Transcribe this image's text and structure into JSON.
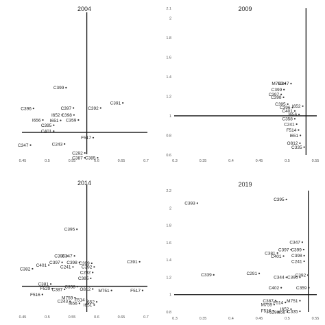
{
  "chart_data": [
    {
      "type": "scatter",
      "title": "2004",
      "xlim": [
        0.45,
        0.7
      ],
      "ylim": [
        0.9,
        1.55
      ],
      "x_ticks": [
        "0.45",
        "0.5",
        "0.55",
        "0.6",
        "0.65",
        "0.7"
      ],
      "y_ticks": [],
      "ref_x": 0.58,
      "ref_y": 1.0,
      "points": [
        {
          "label": "C399",
          "x": 0.538,
          "y": 1.205
        },
        {
          "label": "C396",
          "x": 0.472,
          "y": 1.11
        },
        {
          "label": "C397",
          "x": 0.553,
          "y": 1.112
        },
        {
          "label": "C392",
          "x": 0.608,
          "y": 1.112
        },
        {
          "label": "C391",
          "x": 0.653,
          "y": 1.135
        },
        {
          "label": "I652",
          "x": 0.53,
          "y": 1.08
        },
        {
          "label": "C398",
          "x": 0.554,
          "y": 1.08
        },
        {
          "label": "I656",
          "x": 0.491,
          "y": 1.057
        },
        {
          "label": "I651",
          "x": 0.527,
          "y": 1.055
        },
        {
          "label": "C359",
          "x": 0.563,
          "y": 1.057
        },
        {
          "label": "C395",
          "x": 0.513,
          "y": 1.033
        },
        {
          "label": "C401",
          "x": 0.513,
          "y": 1.006
        },
        {
          "label": "C347",
          "x": 0.466,
          "y": 0.942
        },
        {
          "label": "C243",
          "x": 0.535,
          "y": 0.947
        },
        {
          "label": "F517",
          "x": 0.593,
          "y": 0.976
        },
        {
          "label": "C292",
          "x": 0.576,
          "y": 0.906
        },
        {
          "label": "C385",
          "x": 0.602,
          "y": 0.884
        },
        {
          "label": "C387",
          "x": 0.576,
          "y": 0.884
        }
      ]
    },
    {
      "type": "scatter",
      "title": "2009",
      "xlim": [
        0.3,
        0.6
      ],
      "ylim": [
        0.6,
        2.1
      ],
      "x_ticks": [
        "0.3",
        "0.35",
        "0.4",
        "0.45",
        "0.5",
        "0.55"
      ],
      "y_ticks": [
        "2.1",
        "2",
        "1.8",
        "1.6",
        "1.4",
        "1.2",
        "1",
        "0.8",
        "0.6"
      ],
      "ref_x": 0.58,
      "ref_y": 1.0,
      "points": [
        {
          "label": "M759",
          "x": 0.535,
          "y": 1.33
        },
        {
          "label": "C347",
          "x": 0.548,
          "y": 1.33
        },
        {
          "label": "C399",
          "x": 0.533,
          "y": 1.268
        },
        {
          "label": "C397",
          "x": 0.527,
          "y": 1.219
        },
        {
          "label": "C398",
          "x": 0.532,
          "y": 1.19
        },
        {
          "label": "C395",
          "x": 0.541,
          "y": 1.12
        },
        {
          "label": "C396",
          "x": 0.551,
          "y": 1.084
        },
        {
          "label": "I652",
          "x": 0.573,
          "y": 1.099
        },
        {
          "label": "C401",
          "x": 0.556,
          "y": 1.05
        },
        {
          "label": "I656",
          "x": 0.565,
          "y": 1.015
        },
        {
          "label": "C358",
          "x": 0.556,
          "y": 0.97
        },
        {
          "label": "C241",
          "x": 0.56,
          "y": 0.915
        },
        {
          "label": "F514",
          "x": 0.564,
          "y": 0.855
        },
        {
          "label": "I651",
          "x": 0.568,
          "y": 0.8
        },
        {
          "label": "O812",
          "x": 0.567,
          "y": 0.72
        },
        {
          "label": "C335",
          "x": 0.576,
          "y": 0.68
        }
      ]
    },
    {
      "type": "scatter",
      "title": "2014",
      "xlim": [
        0.45,
        0.7
      ],
      "ylim": [
        0.86,
        1.55
      ],
      "x_ticks": [
        "0.45",
        "0.5",
        "0.55",
        "0.6",
        "0.65",
        "0.7"
      ],
      "y_ticks": [],
      "ref_x": 0.58,
      "ref_y": 1.0,
      "points": [
        {
          "label": "C395",
          "x": 0.56,
          "y": 1.31
        },
        {
          "label": "C396",
          "x": 0.54,
          "y": 1.165
        },
        {
          "label": "C347",
          "x": 0.555,
          "y": 1.165
        },
        {
          "label": "C397",
          "x": 0.53,
          "y": 1.13
        },
        {
          "label": "C398",
          "x": 0.565,
          "y": 1.13
        },
        {
          "label": "C401",
          "x": 0.503,
          "y": 1.115
        },
        {
          "label": "C241",
          "x": 0.552,
          "y": 1.105
        },
        {
          "label": "C399",
          "x": 0.59,
          "y": 1.125
        },
        {
          "label": "C391",
          "x": 0.687,
          "y": 1.133
        },
        {
          "label": "C392",
          "x": 0.595,
          "y": 1.105
        },
        {
          "label": "C382",
          "x": 0.47,
          "y": 1.095
        },
        {
          "label": "C292",
          "x": 0.592,
          "y": 1.075
        },
        {
          "label": "C385",
          "x": 0.588,
          "y": 1.043
        },
        {
          "label": "C381",
          "x": 0.507,
          "y": 1.012
        },
        {
          "label": "C358",
          "x": 0.561,
          "y": 0.998
        },
        {
          "label": "F529",
          "x": 0.51,
          "y": 0.987
        },
        {
          "label": "C387",
          "x": 0.535,
          "y": 0.983
        },
        {
          "label": "O812",
          "x": 0.592,
          "y": 0.985
        },
        {
          "label": "M751",
          "x": 0.63,
          "y": 0.977
        },
        {
          "label": "F517",
          "x": 0.693,
          "y": 0.977
        },
        {
          "label": "F516",
          "x": 0.49,
          "y": 0.955
        },
        {
          "label": "M759",
          "x": 0.556,
          "y": 0.938
        },
        {
          "label": "F514",
          "x": 0.58,
          "y": 0.926
        },
        {
          "label": "C243",
          "x": 0.546,
          "y": 0.918
        },
        {
          "label": "I652",
          "x": 0.6,
          "y": 0.915
        },
        {
          "label": "I656",
          "x": 0.565,
          "y": 0.907
        },
        {
          "label": "I651",
          "x": 0.595,
          "y": 0.898
        }
      ]
    },
    {
      "type": "scatter",
      "title": "2019",
      "xlim": [
        0.3,
        0.6
      ],
      "ylim": [
        0.8,
        2.2
      ],
      "x_ticks": [
        "0.3",
        "0.35",
        "0.4",
        "0.45",
        "0.5",
        "0.55"
      ],
      "y_ticks": [
        "2.2",
        "2",
        "1.8",
        "1.6",
        "1.4",
        "1.2",
        "1",
        "0.8"
      ],
      "ref_x": 0.585,
      "ref_y": 1.0,
      "points": [
        {
          "label": "C393",
          "x": 0.348,
          "y": 2.055
        },
        {
          "label": "C395",
          "x": 0.538,
          "y": 2.098
        },
        {
          "label": "C347",
          "x": 0.572,
          "y": 1.605
        },
        {
          "label": "C397",
          "x": 0.548,
          "y": 1.52
        },
        {
          "label": "C399",
          "x": 0.575,
          "y": 1.52
        },
        {
          "label": "C381",
          "x": 0.519,
          "y": 1.48
        },
        {
          "label": "C401",
          "x": 0.532,
          "y": 1.445
        },
        {
          "label": "C398",
          "x": 0.576,
          "y": 1.45
        },
        {
          "label": "C241",
          "x": 0.576,
          "y": 1.385
        },
        {
          "label": "C339",
          "x": 0.383,
          "y": 1.228
        },
        {
          "label": "C291",
          "x": 0.48,
          "y": 1.245
        },
        {
          "label": "C344",
          "x": 0.538,
          "y": 1.2
        },
        {
          "label": "C396",
          "x": 0.567,
          "y": 1.2
        },
        {
          "label": "C392",
          "x": 0.584,
          "y": 1.225
        },
        {
          "label": "C402",
          "x": 0.527,
          "y": 1.08
        },
        {
          "label": "C359",
          "x": 0.586,
          "y": 1.08
        },
        {
          "label": "C387",
          "x": 0.515,
          "y": 0.93
        },
        {
          "label": "M751",
          "x": 0.567,
          "y": 0.93
        },
        {
          "label": "M759",
          "x": 0.512,
          "y": 0.885
        },
        {
          "label": "F514",
          "x": 0.536,
          "y": 0.91
        },
        {
          "label": "F516",
          "x": 0.51,
          "y": 0.815
        },
        {
          "label": "I652",
          "x": 0.548,
          "y": 0.833
        },
        {
          "label": "F529",
          "x": 0.522,
          "y": 0.8
        },
        {
          "label": "I656",
          "x": 0.54,
          "y": 0.8
        },
        {
          "label": "C335",
          "x": 0.567,
          "y": 0.808
        }
      ]
    }
  ]
}
